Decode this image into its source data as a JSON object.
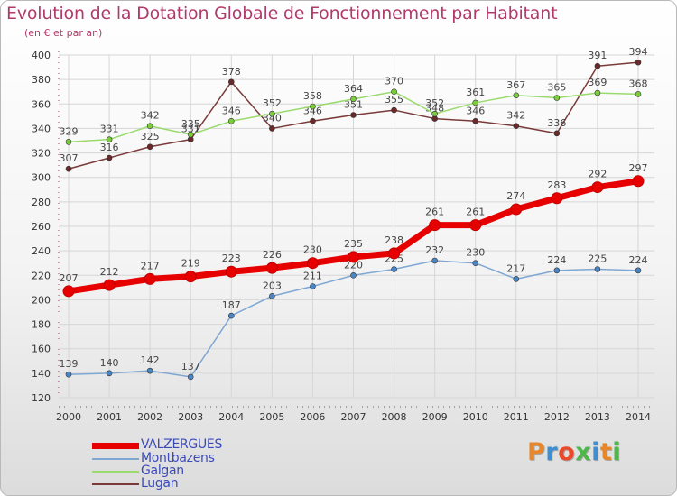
{
  "header": {
    "title": "Evolution de la Dotation Globale de Fonctionnement par Habitant",
    "subtitle": "(en € et par an)"
  },
  "logo": {
    "text": "Proxiti",
    "colors": [
      "#e8862a",
      "#3e8fd1",
      "#e84a2a",
      "#4db848",
      "#3e8fd1",
      "#e8862a",
      "#4db848"
    ]
  },
  "colors": {
    "axis": "#b03a6a",
    "grid": "#d6d6d6",
    "label": "#555555"
  },
  "chart_data": {
    "type": "line",
    "title": "Evolution de la Dotation Globale de Fonctionnement par Habitant",
    "ylabel": "(en € et par an)",
    "x": [
      "2000",
      "2001",
      "2002",
      "2003",
      "2004",
      "2005",
      "2006",
      "2007",
      "2008",
      "2009",
      "2010",
      "2011",
      "2012",
      "2013",
      "2014"
    ],
    "yticks": [
      120,
      140,
      160,
      180,
      200,
      220,
      240,
      260,
      280,
      300,
      320,
      340,
      360,
      380,
      400
    ],
    "ylim": [
      120,
      400
    ],
    "grid": true,
    "legend": "bottom-left",
    "series": [
      {
        "name": "VALZERGUES",
        "color": "#e60000",
        "marker": "#e60000",
        "width": 7,
        "values": [
          207,
          212,
          217,
          219,
          223,
          226,
          230,
          235,
          238,
          261,
          261,
          274,
          283,
          292,
          297
        ],
        "labels": [
          "207",
          "212",
          "217",
          "219",
          "223",
          "226",
          "230",
          "235",
          "238",
          "261",
          "261",
          "274",
          "283",
          "292",
          "297"
        ]
      },
      {
        "name": "Montbazens",
        "color": "#7fa7d4",
        "marker": "#4a86c5",
        "width": 1.5,
        "values": [
          139,
          140,
          142,
          137,
          187,
          203,
          211,
          220,
          225,
          232,
          230,
          217,
          224,
          225,
          224
        ],
        "labels": [
          "139",
          "140",
          "142",
          "137",
          "187",
          "203",
          "211",
          "220",
          "225",
          "232",
          "230",
          "217",
          "224",
          "225",
          "224"
        ]
      },
      {
        "name": "Galgan",
        "color": "#9adb6e",
        "marker": "#7ccd3c",
        "width": 1.5,
        "values": [
          329,
          331,
          342,
          335,
          346,
          352,
          358,
          364,
          370,
          352,
          361,
          367,
          365,
          369,
          368
        ],
        "labels": [
          "329",
          "331",
          "342",
          "335",
          "346",
          "352",
          "358",
          "364",
          "370",
          "352",
          "361",
          "367",
          "365",
          "369",
          "368"
        ]
      },
      {
        "name": "Lugan",
        "color": "#7a3a3a",
        "marker": "#6b2a2a",
        "width": 1.5,
        "values": [
          307,
          316,
          325,
          331,
          378,
          340,
          346,
          351,
          355,
          348,
          346,
          342,
          336,
          391,
          394
        ],
        "labels": [
          "307",
          "316",
          "325",
          "331",
          "378",
          "340",
          "346",
          "351",
          "355",
          "348",
          "346",
          "342",
          "336",
          "391",
          "394"
        ]
      }
    ]
  }
}
